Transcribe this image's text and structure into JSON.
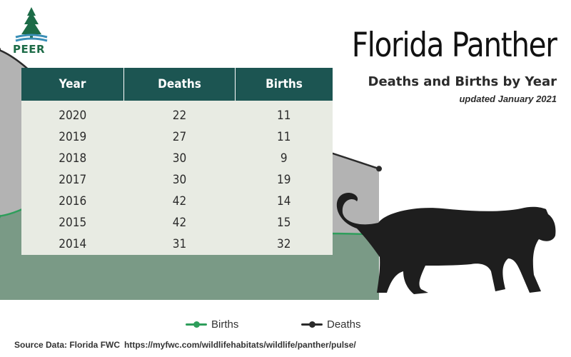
{
  "logo": {
    "text": "PEER",
    "color": "#1c6b47"
  },
  "title": "Florida Panther",
  "subtitle": "Deaths and Births by Year",
  "updated": "updated January 2021",
  "table": {
    "headers": [
      "Year",
      "Deaths",
      "Births"
    ],
    "rows": [
      [
        "2020",
        "22",
        "11"
      ],
      [
        "2019",
        "27",
        "11"
      ],
      [
        "2018",
        "30",
        "9"
      ],
      [
        "2017",
        "30",
        "19"
      ],
      [
        "2016",
        "42",
        "14"
      ],
      [
        "2015",
        "42",
        "15"
      ],
      [
        "2014",
        "31",
        "32"
      ]
    ]
  },
  "legend": {
    "births": "Births",
    "deaths": "Deaths"
  },
  "source": {
    "label": "Source Data: Florida FWC",
    "url": "https://myfwc.com/wildlifehabitats/wildlife/panther/pulse/"
  },
  "colors": {
    "births": "#2e9e5b",
    "births_fill": "#7a9a86",
    "deaths": "#2b2b2b",
    "deaths_fill": "#b3b3b3",
    "table_header": "#1c5552",
    "table_body": "#e8ebe3",
    "panther": "#1e1e1e"
  },
  "chart_data": {
    "type": "area",
    "categories": [
      "2014",
      "2015",
      "2016",
      "2017",
      "2018",
      "2019",
      "2020"
    ],
    "series": [
      {
        "name": "Deaths",
        "values": [
          31,
          42,
          42,
          30,
          30,
          27,
          22
        ]
      },
      {
        "name": "Births",
        "values": [
          32,
          15,
          14,
          19,
          9,
          11,
          11
        ]
      }
    ],
    "ylim": [
      0,
      45
    ],
    "grid": false,
    "legend_position": "bottom"
  }
}
